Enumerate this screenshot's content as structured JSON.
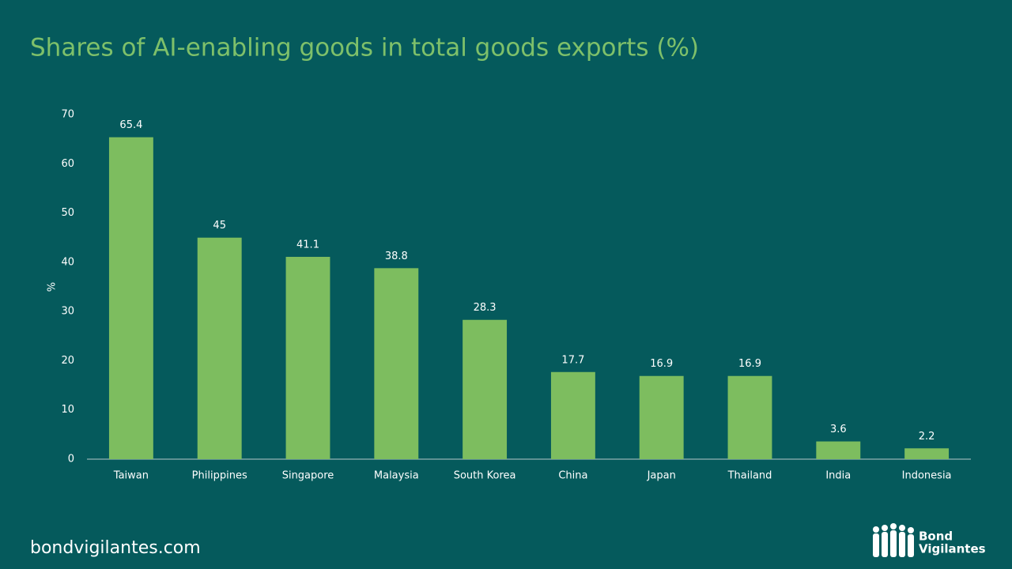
{
  "chart_data": {
    "type": "bar",
    "title": "Shares of AI-enabling goods in total goods exports (%)",
    "y_label": "%",
    "categories": [
      "Taiwan",
      "Philippines",
      "Singapore",
      "Malaysia",
      "South Korea",
      "China",
      "Japan",
      "Thailand",
      "India",
      "Indonesia"
    ],
    "values": [
      65.4,
      45,
      41.1,
      38.8,
      28.3,
      17.7,
      16.9,
      16.9,
      3.6,
      2.2
    ],
    "color": "#7dbd5f",
    "ylim": [
      0,
      70
    ],
    "yticks": [
      0,
      10,
      20,
      30,
      40,
      50,
      60,
      70
    ],
    "grid": false
  },
  "footer": {
    "website": "bondvigilantes.com",
    "logo_line1": "Bond",
    "logo_line2": "Vigilantes"
  }
}
